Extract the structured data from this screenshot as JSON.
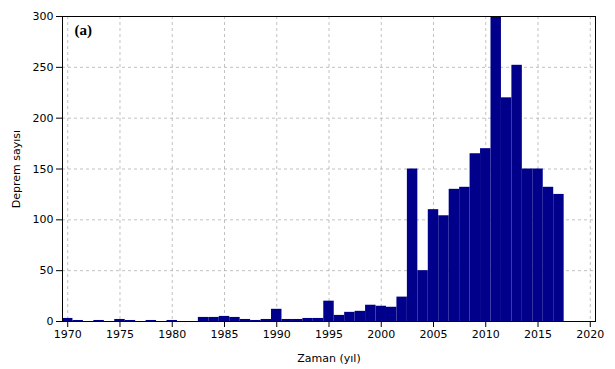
{
  "chart_data": {
    "type": "bar",
    "x": [
      1970,
      1971,
      1972,
      1973,
      1974,
      1975,
      1976,
      1977,
      1978,
      1979,
      1980,
      1981,
      1982,
      1983,
      1984,
      1985,
      1986,
      1987,
      1988,
      1989,
      1990,
      1991,
      1992,
      1993,
      1994,
      1995,
      1996,
      1997,
      1998,
      1999,
      2000,
      2001,
      2002,
      2003,
      2004,
      2005,
      2006,
      2007,
      2008,
      2009,
      2010,
      2011,
      2012,
      2013,
      2014,
      2015,
      2016,
      2017,
      2018,
      2019
    ],
    "values": [
      3,
      1,
      0,
      1,
      0,
      2,
      1,
      0,
      1,
      0,
      1,
      0,
      0,
      4,
      4,
      5,
      4,
      2,
      1,
      2,
      12,
      2,
      2,
      3,
      3,
      20,
      6,
      9,
      10,
      16,
      15,
      14,
      24,
      150,
      50,
      110,
      104,
      130,
      132,
      165,
      170,
      300,
      220,
      252,
      150,
      150,
      132,
      125,
      0,
      0
    ],
    "color": "#00008B",
    "xlabel": "Zaman (yıl)",
    "ylabel": "Deprem sayısı",
    "annotations": [
      "(a)"
    ],
    "xlim": [
      1969.5,
      2020.5
    ],
    "ylim": [
      0,
      300
    ],
    "xticks": [
      1970,
      1975,
      1980,
      1985,
      1990,
      1995,
      2000,
      2005,
      2010,
      2015,
      2020
    ],
    "yticks": [
      0,
      50,
      100,
      150,
      200,
      250,
      300
    ],
    "grid": true
  }
}
